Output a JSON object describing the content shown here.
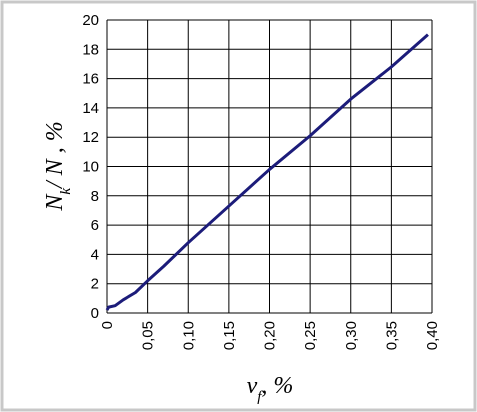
{
  "chart_data": {
    "type": "line",
    "xlabel": [
      "v",
      "f",
      ", %"
    ],
    "ylabel": [
      "N",
      "k",
      "/ N , %"
    ],
    "x": [
      0,
      0.002,
      0.01,
      0.02,
      0.035,
      0.05,
      0.07,
      0.1,
      0.15,
      0.2,
      0.25,
      0.3,
      0.35,
      0.395
    ],
    "series": [
      {
        "color": "#1c1c7a",
        "values": [
          0.2,
          0.4,
          0.5,
          0.9,
          1.4,
          2.2,
          3.2,
          4.8,
          7.3,
          9.8,
          12.1,
          14.6,
          16.8,
          19
        ]
      }
    ],
    "xlim": [
      0,
      0.4
    ],
    "xticks": [
      0,
      {
        "value": 0.05,
        "label": "0,05"
      },
      {
        "value": 0.1,
        "label": "0,10"
      },
      {
        "value": 0.15,
        "label": "0,15"
      },
      {
        "value": 0.2,
        "label": "0,20"
      },
      {
        "value": 0.25,
        "label": "0,25"
      },
      {
        "value": 0.3,
        "label": "0,30"
      },
      {
        "value": 0.35,
        "label": "0,35"
      },
      {
        "value": 0.4,
        "label": "0,40"
      }
    ],
    "ylim": [
      0,
      20
    ],
    "yticks": [
      0,
      2,
      4,
      6,
      8,
      10,
      12,
      14,
      16,
      18,
      20
    ],
    "grid": true
  }
}
